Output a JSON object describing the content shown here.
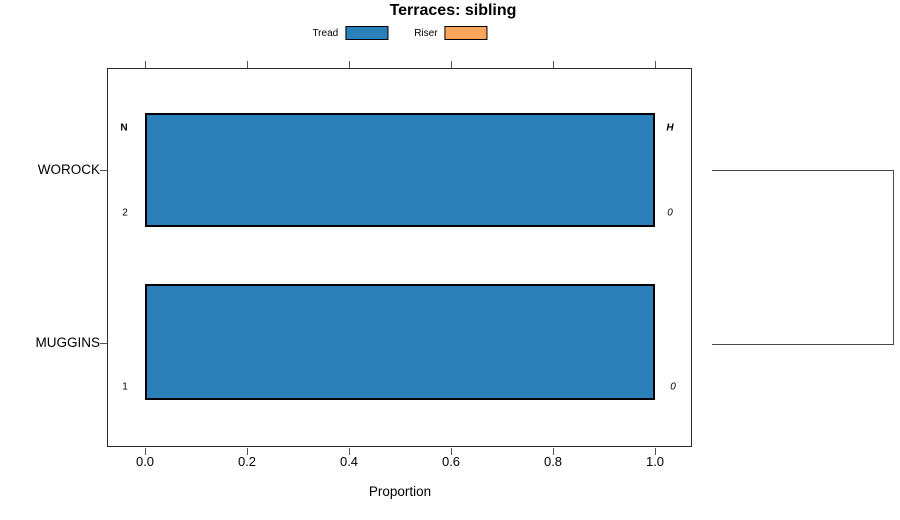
{
  "title": "Terraces: sibling",
  "legend": {
    "items": [
      {
        "label": "Tread",
        "color_key": "tread"
      },
      {
        "label": "Riser",
        "color_key": "riser"
      }
    ]
  },
  "axis": {
    "xlabel": "Proportion",
    "x_ticks": [
      "0.0",
      "0.2",
      "0.4",
      "0.6",
      "0.8",
      "1.0"
    ]
  },
  "rows": [
    {
      "category": "WOROCK",
      "left_top": "N",
      "left_bottom": "2",
      "right_top": "H",
      "right_bottom": "0"
    },
    {
      "category": "MUGGINS",
      "left_bottom": "1",
      "right_bottom": "0"
    }
  ],
  "colors": {
    "tread": "#2c80b9",
    "riser": "#f9a65c",
    "bar_border": "#000000",
    "box_border": "#2b2b2b",
    "bracket": "#4a4a4a"
  },
  "chart_data": {
    "type": "bar",
    "orientation": "horizontal",
    "title": "Terraces: sibling",
    "xlabel": "Proportion",
    "xlim": [
      0,
      1
    ],
    "x_tick_values": [
      0.0,
      0.2,
      0.4,
      0.6,
      0.8,
      1.0
    ],
    "categories": [
      "WOROCK",
      "MUGGINS"
    ],
    "series": [
      {
        "name": "Tread",
        "values": [
          1.0,
          1.0
        ]
      },
      {
        "name": "Riser",
        "values": [
          0.0,
          0.0
        ]
      }
    ],
    "counts_N": [
      2,
      1
    ],
    "counts_H": [
      0,
      0
    ],
    "legend_position": "top",
    "grid": false,
    "right_bracket_connects": [
      "WOROCK",
      "MUGGINS"
    ]
  }
}
